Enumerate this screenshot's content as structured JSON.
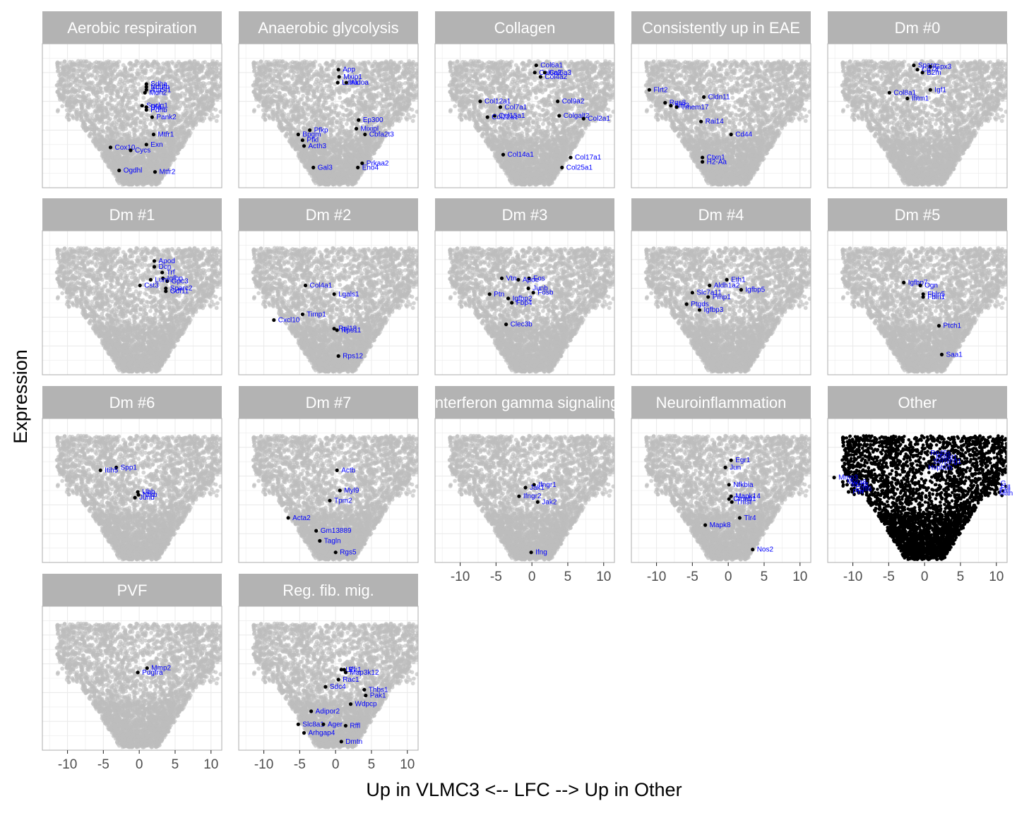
{
  "chart_data": {
    "type": "scatter",
    "xlabel": "Up in VLMC3 <-- LFC --> Up in Other",
    "ylabel": "Expression",
    "xlim": [
      -13.5,
      11.5
    ],
    "ylim": [
      0,
      10
    ],
    "x_ticks": [
      "-10",
      "-5",
      "0",
      "5",
      "10"
    ],
    "x_tick_values": [
      -10,
      -5,
      0,
      5,
      10
    ],
    "grid": true,
    "background_points_color": "#bdbdbd",
    "highlight_color": "#000000",
    "label_color": "#0000ff",
    "strip_color": "#b3b3b3",
    "panels": [
      {
        "title": "Aerobic respiration",
        "genes": [
          {
            "gene": "Sdha",
            "x": 1,
            "y": 7.2
          },
          {
            "gene": "Ndufb",
            "x": 1,
            "y": 7.0
          },
          {
            "gene": "Atp5f1",
            "x": 1,
            "y": 6.8
          },
          {
            "gene": "Mdh2",
            "x": 0.8,
            "y": 6.6
          },
          {
            "gene": "Suclg1",
            "x": 0.4,
            "y": 5.7
          },
          {
            "gene": "Dld",
            "x": 1,
            "y": 5.6
          },
          {
            "gene": "Pdhb",
            "x": 1,
            "y": 5.4
          },
          {
            "gene": "Pank2",
            "x": 1.8,
            "y": 4.9
          },
          {
            "gene": "Mtfr1",
            "x": 2,
            "y": 3.7
          },
          {
            "gene": "Exn",
            "x": 1,
            "y": 3.0
          },
          {
            "gene": "Cox10",
            "x": -4,
            "y": 2.8
          },
          {
            "gene": "Cycs",
            "x": -1.2,
            "y": 2.6
          },
          {
            "gene": "Ogdhl",
            "x": -2.8,
            "y": 1.2
          },
          {
            "gene": "Mtfr2",
            "x": 2.2,
            "y": 1.1
          }
        ]
      },
      {
        "title": "Anaerobic glycolysis",
        "genes": [
          {
            "gene": "App",
            "x": 0.4,
            "y": 8.2
          },
          {
            "gene": "Mxip1",
            "x": 0.5,
            "y": 7.7
          },
          {
            "gene": "Ldha",
            "x": 0.3,
            "y": 7.3
          },
          {
            "gene": "Aldoa",
            "x": 1.5,
            "y": 7.3
          },
          {
            "gene": "Ep300",
            "x": 3.2,
            "y": 4.7
          },
          {
            "gene": "Mixipl",
            "x": 2.9,
            "y": 4.1
          },
          {
            "gene": "Cbfa2t3",
            "x": 4.1,
            "y": 3.7
          },
          {
            "gene": "Pfkp",
            "x": -3.6,
            "y": 4.0
          },
          {
            "gene": "Bpgm",
            "x": -5.2,
            "y": 3.7
          },
          {
            "gene": "Pfkl",
            "x": -4.6,
            "y": 3.3
          },
          {
            "gene": "Acth3",
            "x": -4.4,
            "y": 2.9
          },
          {
            "gene": "Prkaa2",
            "x": 3.7,
            "y": 1.7
          },
          {
            "gene": "Eno4",
            "x": 3.1,
            "y": 1.4
          },
          {
            "gene": "Gal3",
            "x": -3.1,
            "y": 1.4
          }
        ]
      },
      {
        "title": "Collagen",
        "genes": [
          {
            "gene": "Col6a1",
            "x": 0.6,
            "y": 8.5
          },
          {
            "gene": "Col6a2",
            "x": 0.4,
            "y": 8.0
          },
          {
            "gene": "Col6a3",
            "x": 1.8,
            "y": 8.0
          },
          {
            "gene": "Col4a2",
            "x": 1.2,
            "y": 7.7
          },
          {
            "gene": "Col12a1",
            "x": -7.2,
            "y": 6.0
          },
          {
            "gene": "Col9a2",
            "x": 3.6,
            "y": 6.0
          },
          {
            "gene": "Col7a1",
            "x": -4.4,
            "y": 5.6
          },
          {
            "gene": "Col15a1",
            "x": -5.2,
            "y": 5.0
          },
          {
            "gene": "Col22a1",
            "x": -6.2,
            "y": 4.9
          },
          {
            "gene": "Colgalt2",
            "x": 3.8,
            "y": 5.0
          },
          {
            "gene": "Col2a1",
            "x": 7.2,
            "y": 4.8
          },
          {
            "gene": "Col14a1",
            "x": -4.0,
            "y": 2.3
          },
          {
            "gene": "Col17a1",
            "x": 5.4,
            "y": 2.1
          },
          {
            "gene": "Col25a1",
            "x": 4.2,
            "y": 1.4
          }
        ]
      },
      {
        "title": "Consistently up in EAE",
        "genes": [
          {
            "gene": "Flrt2",
            "x": -11.0,
            "y": 6.8
          },
          {
            "gene": "Cldn11",
            "x": -3.4,
            "y": 6.3
          },
          {
            "gene": "Rgs8",
            "x": -8.8,
            "y": 5.9
          },
          {
            "gene": "Nfil3",
            "x": -8.0,
            "y": 5.7
          },
          {
            "gene": "Tmem17",
            "x": -7.2,
            "y": 5.6
          },
          {
            "gene": "Rai14",
            "x": -3.8,
            "y": 4.6
          },
          {
            "gene": "Cd44",
            "x": 0.4,
            "y": 3.7
          },
          {
            "gene": "Ctxn1",
            "x": -3.6,
            "y": 2.1
          },
          {
            "gene": "H2-Aa",
            "x": -3.6,
            "y": 1.8
          }
        ]
      },
      {
        "title": "Dm #0",
        "genes": [
          {
            "gene": "Sparc",
            "x": -1.5,
            "y": 8.5
          },
          {
            "gene": "Gpx3",
            "x": 0.8,
            "y": 8.4
          },
          {
            "gene": "Cd74",
            "x": -1.0,
            "y": 8.2
          },
          {
            "gene": "B2m",
            "x": -0.3,
            "y": 8.0
          },
          {
            "gene": "Col8a1",
            "x": -4.9,
            "y": 6.6
          },
          {
            "gene": "Igf1",
            "x": 0.8,
            "y": 6.8
          },
          {
            "gene": "Ifitm1",
            "x": -2.4,
            "y": 6.2
          }
        ]
      },
      {
        "title": "Dm #1",
        "genes": [
          {
            "gene": "Apod",
            "x": 2.1,
            "y": 7.9
          },
          {
            "gene": "Dcn",
            "x": 2.1,
            "y": 7.5
          },
          {
            "gene": "Trf",
            "x": 3.2,
            "y": 7.1
          },
          {
            "gene": "Igfbp",
            "x": 3.3,
            "y": 6.7
          },
          {
            "gene": "Gpc3",
            "x": 3.9,
            "y": 6.5
          },
          {
            "gene": "Lum",
            "x": 1.6,
            "y": 6.6
          },
          {
            "gene": "Cst3",
            "x": 0.1,
            "y": 6.2
          },
          {
            "gene": "Sparc2",
            "x": 3.7,
            "y": 6.0
          },
          {
            "gene": "Gdf11",
            "x": 3.7,
            "y": 5.8
          }
        ]
      },
      {
        "title": "Dm #2",
        "genes": [
          {
            "gene": "Col4a1",
            "x": -4.2,
            "y": 6.2
          },
          {
            "gene": "Lgals1",
            "x": -0.2,
            "y": 5.6
          },
          {
            "gene": "Timp1",
            "x": -4.6,
            "y": 4.2
          },
          {
            "gene": "Cxcl10",
            "x": -8.6,
            "y": 3.8
          },
          {
            "gene": "Rpl18",
            "x": -0.2,
            "y": 3.2
          },
          {
            "gene": "Rps11",
            "x": 0.2,
            "y": 3.1
          },
          {
            "gene": "Rps12",
            "x": 0.4,
            "y": 1.3
          }
        ]
      },
      {
        "title": "Dm #3",
        "genes": [
          {
            "gene": "Vtn",
            "x": -4.2,
            "y": 6.7
          },
          {
            "gene": "Fos",
            "x": -0.4,
            "y": 6.7
          },
          {
            "gene": "Apoe",
            "x": -1.9,
            "y": 6.6
          },
          {
            "gene": "Junb",
            "x": -0.5,
            "y": 6.0
          },
          {
            "gene": "Fosb",
            "x": 0.2,
            "y": 5.7
          },
          {
            "gene": "Ptn",
            "x": -5.9,
            "y": 5.6
          },
          {
            "gene": "Igfbp2",
            "x": -3.3,
            "y": 5.3
          },
          {
            "gene": "Fbp4",
            "x": -2.8,
            "y": 5.0
          },
          {
            "gene": "Clec3b",
            "x": -3.6,
            "y": 3.5
          }
        ]
      },
      {
        "title": "Dm #4",
        "genes": [
          {
            "gene": "Eth1",
            "x": -0.2,
            "y": 6.6
          },
          {
            "gene": "Aldh1a2",
            "x": -2.6,
            "y": 6.2
          },
          {
            "gene": "Igfbp5",
            "x": 1.8,
            "y": 5.9
          },
          {
            "gene": "Slc7a11",
            "x": -5.0,
            "y": 5.7
          },
          {
            "gene": "Pmp1",
            "x": -2.8,
            "y": 5.4
          },
          {
            "gene": "Ptgds",
            "x": -5.8,
            "y": 4.9
          },
          {
            "gene": "Igfbp3",
            "x": -4.0,
            "y": 4.5
          }
        ]
      },
      {
        "title": "Dm #5",
        "genes": [
          {
            "gene": "Igfbp7",
            "x": -2.9,
            "y": 6.4
          },
          {
            "gene": "Ogn",
            "x": -0.6,
            "y": 6.2
          },
          {
            "gene": "Fbln5",
            "x": -0.2,
            "y": 5.6
          },
          {
            "gene": "Fbln1",
            "x": -0.2,
            "y": 5.4
          },
          {
            "gene": "Ptch1",
            "x": 2.0,
            "y": 3.4
          },
          {
            "gene": "Saa1",
            "x": 2.4,
            "y": 1.4
          }
        ]
      },
      {
        "title": "Dm #6",
        "genes": [
          {
            "gene": "Spp1",
            "x": -3.2,
            "y": 6.6
          },
          {
            "gene": "Itih5",
            "x": -5.4,
            "y": 6.4
          },
          {
            "gene": "Ubb",
            "x": -0.2,
            "y": 4.9
          },
          {
            "gene": "Nfkb",
            "x": -0.1,
            "y": 4.7
          },
          {
            "gene": "Jund",
            "x": -0.6,
            "y": 4.5
          }
        ]
      },
      {
        "title": "Dm #7",
        "genes": [
          {
            "gene": "Actb",
            "x": 0.2,
            "y": 6.4
          },
          {
            "gene": "Myl9",
            "x": 0.6,
            "y": 5.0
          },
          {
            "gene": "Tpm2",
            "x": -0.8,
            "y": 4.3
          },
          {
            "gene": "Acta2",
            "x": -6.6,
            "y": 3.1
          },
          {
            "gene": "Gm13889",
            "x": -2.7,
            "y": 2.2
          },
          {
            "gene": "Tagln",
            "x": -2.2,
            "y": 1.5
          },
          {
            "gene": "Rgs5",
            "x": 0.0,
            "y": 0.7
          }
        ]
      },
      {
        "title": "Interferon gamma signaling",
        "genes": [
          {
            "gene": "Ifngr1",
            "x": 0.3,
            "y": 5.4
          },
          {
            "gene": "Jak1",
            "x": -0.9,
            "y": 5.2
          },
          {
            "gene": "Ifngr2",
            "x": -1.8,
            "y": 4.6
          },
          {
            "gene": "Jak2",
            "x": 0.8,
            "y": 4.2
          },
          {
            "gene": "Ifng",
            "x": -0.1,
            "y": 0.7
          }
        ]
      },
      {
        "title": "Neuroinflammation",
        "genes": [
          {
            "gene": "Egr1",
            "x": 0.4,
            "y": 7.1
          },
          {
            "gene": "Jun",
            "x": -0.4,
            "y": 6.6
          },
          {
            "gene": "Nfkbia",
            "x": 0.1,
            "y": 5.4
          },
          {
            "gene": "Mapk14",
            "x": 0.4,
            "y": 4.6
          },
          {
            "gene": "Ctnnb1",
            "x": 0.1,
            "y": 4.4
          },
          {
            "gene": "Tnfsf",
            "x": 0.5,
            "y": 4.2
          },
          {
            "gene": "Tlr4",
            "x": 1.6,
            "y": 3.1
          },
          {
            "gene": "Mapk8",
            "x": -3.2,
            "y": 2.6
          },
          {
            "gene": "Nos2",
            "x": 3.4,
            "y": 0.9
          }
        ]
      },
      {
        "title": "Other",
        "genes": [
          {
            "gene": "Rn45s",
            "x": 0.2,
            "y": 7.6
          },
          {
            "gene": "Malat1",
            "x": 1.0,
            "y": 7.3
          },
          {
            "gene": "Serping1",
            "x": 0.6,
            "y": 7.0
          },
          {
            "gene": "Hspb2b",
            "x": -0.1,
            "y": 6.6
          },
          {
            "gene": "Mmp3",
            "x": -12.6,
            "y": 5.9
          },
          {
            "gene": "Mxra8",
            "x": -11.4,
            "y": 5.6
          },
          {
            "gene": "Mxd4",
            "x": -10.8,
            "y": 5.4
          },
          {
            "gene": "Egfl6",
            "x": -10.2,
            "y": 5.1
          },
          {
            "gene": "Ptn",
            "x": -10.6,
            "y": 4.9
          },
          {
            "gene": "G",
            "x": 10.0,
            "y": 5.5
          },
          {
            "gene": "Fdl",
            "x": 10.0,
            "y": 5.2
          },
          {
            "gene": "Fall",
            "x": 9.8,
            "y": 5.0
          },
          {
            "gene": "Man",
            "x": 9.8,
            "y": 4.8
          }
        ]
      },
      {
        "title": "PVF",
        "genes": [
          {
            "gene": "Mmp2",
            "x": 1.1,
            "y": 5.7
          },
          {
            "gene": "Pdgfra",
            "x": -0.2,
            "y": 5.4
          }
        ]
      },
      {
        "title": "Reg. fib. mig.",
        "genes": [
          {
            "gene": "Lif",
            "x": 0.8,
            "y": 5.6
          },
          {
            "gene": "Efr1",
            "x": 1.2,
            "y": 5.6
          },
          {
            "gene": "Map3k12",
            "x": 1.4,
            "y": 5.4
          },
          {
            "gene": "Rac1",
            "x": 0.4,
            "y": 4.9
          },
          {
            "gene": "Sdc4",
            "x": -1.4,
            "y": 4.4
          },
          {
            "gene": "Thbs1",
            "x": 4.0,
            "y": 4.2
          },
          {
            "gene": "Pak1",
            "x": 4.2,
            "y": 3.8
          },
          {
            "gene": "Wdpcp",
            "x": 2.1,
            "y": 3.2
          },
          {
            "gene": "Adipor2",
            "x": -3.4,
            "y": 2.7
          },
          {
            "gene": "Slc8a1",
            "x": -5.2,
            "y": 1.8
          },
          {
            "gene": "Ager",
            "x": -1.7,
            "y": 1.8
          },
          {
            "gene": "Rffl",
            "x": 1.4,
            "y": 1.7
          },
          {
            "gene": "Arhgap4",
            "x": -4.4,
            "y": 1.2
          },
          {
            "gene": "Dmtn",
            "x": 0.8,
            "y": 0.6
          }
        ]
      }
    ]
  }
}
